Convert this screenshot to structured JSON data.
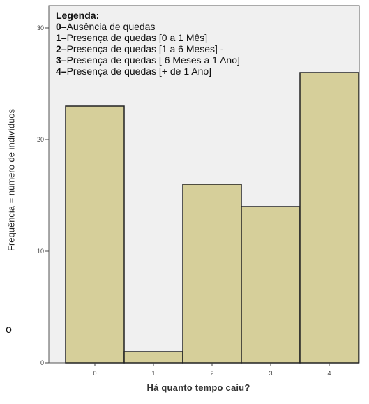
{
  "chart_data": {
    "type": "bar",
    "categories": [
      "0",
      "1",
      "2",
      "3",
      "4"
    ],
    "values": [
      23,
      1,
      16,
      14,
      26
    ],
    "xlabel": "Há quanto tempo caiu?",
    "ylabel": "Frequência = número de indivíduos",
    "ylim": [
      0,
      32
    ],
    "yticks": [
      "0",
      "10",
      "20",
      "30"
    ],
    "grid": false,
    "bar_color": "#d6cf9a",
    "bar_edge_color": "#222222",
    "plot_background": "#f0f0f0",
    "legend": {
      "title": "Legenda:",
      "entries": [
        {
          "key": "0",
          "text": "Ausência de quedas"
        },
        {
          "key": "1",
          "text": "Presença de quedas [0 a 1 Mês]"
        },
        {
          "key": "2",
          "text": "Presença de quedas [1 a 6 Meses] -"
        },
        {
          "key": "3",
          "text": "Presença de quedas [ 6 Meses a 1 Ano]"
        },
        {
          "key": "4",
          "text": "Presença de quedas [+ de 1 Ano]"
        }
      ]
    }
  },
  "stray_text": "o"
}
